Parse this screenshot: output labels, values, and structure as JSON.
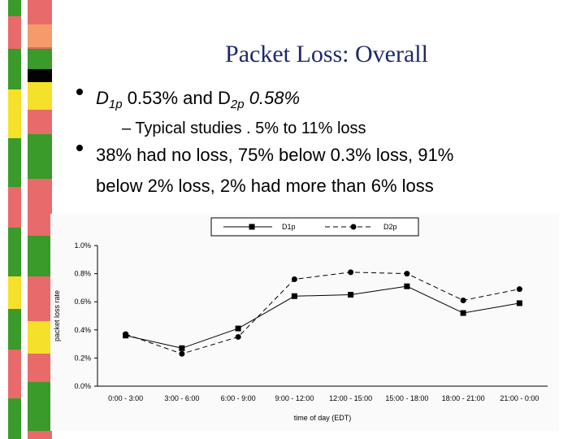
{
  "slide": {
    "title": "Packet Loss: Overall",
    "bullet1": [
      "D",
      "1p",
      " 0.53% and D",
      "2p",
      " 0.58%"
    ],
    "sub_bullet": "– Typical studies . 5% to 11% loss",
    "bullet2_line1": "38% had no loss, 75% below 0.3% loss, 91%",
    "bullet2_line2": "below 2% loss, 2% had more than 6% loss"
  },
  "chart_data": {
    "type": "line",
    "y_label": "packet loss rate",
    "x_label": "time of day (EDT)",
    "categories": [
      "0:00 - 3:00",
      "3:00 - 6:00",
      "6:00 - 9:00",
      "9:00 - 12:00",
      "12:00 - 15:00",
      "15:00 - 18:00",
      "18:00 - 21:00",
      "21:00 - 0:00"
    ],
    "series": [
      {
        "name": "D1p",
        "color": "#000000",
        "values": [
          0.36,
          0.27,
          0.41,
          0.64,
          0.65,
          0.71,
          0.52,
          0.59
        ]
      },
      {
        "name": "D2p",
        "color": "#000000",
        "values": [
          0.37,
          0.23,
          0.35,
          0.76,
          0.81,
          0.8,
          0.61,
          0.69
        ]
      }
    ],
    "ylim": [
      0,
      1.0
    ],
    "yticks": [
      {
        "value": 0,
        "label": "0.0%"
      },
      {
        "value": 0.2,
        "label": "0.2%"
      },
      {
        "value": 0.4,
        "label": "0.4%"
      },
      {
        "value": 0.6,
        "label": "0.6%"
      },
      {
        "value": 0.8,
        "label": "0.8%"
      },
      {
        "value": 1.0,
        "label": "1.0%"
      }
    ],
    "legend": "top"
  }
}
